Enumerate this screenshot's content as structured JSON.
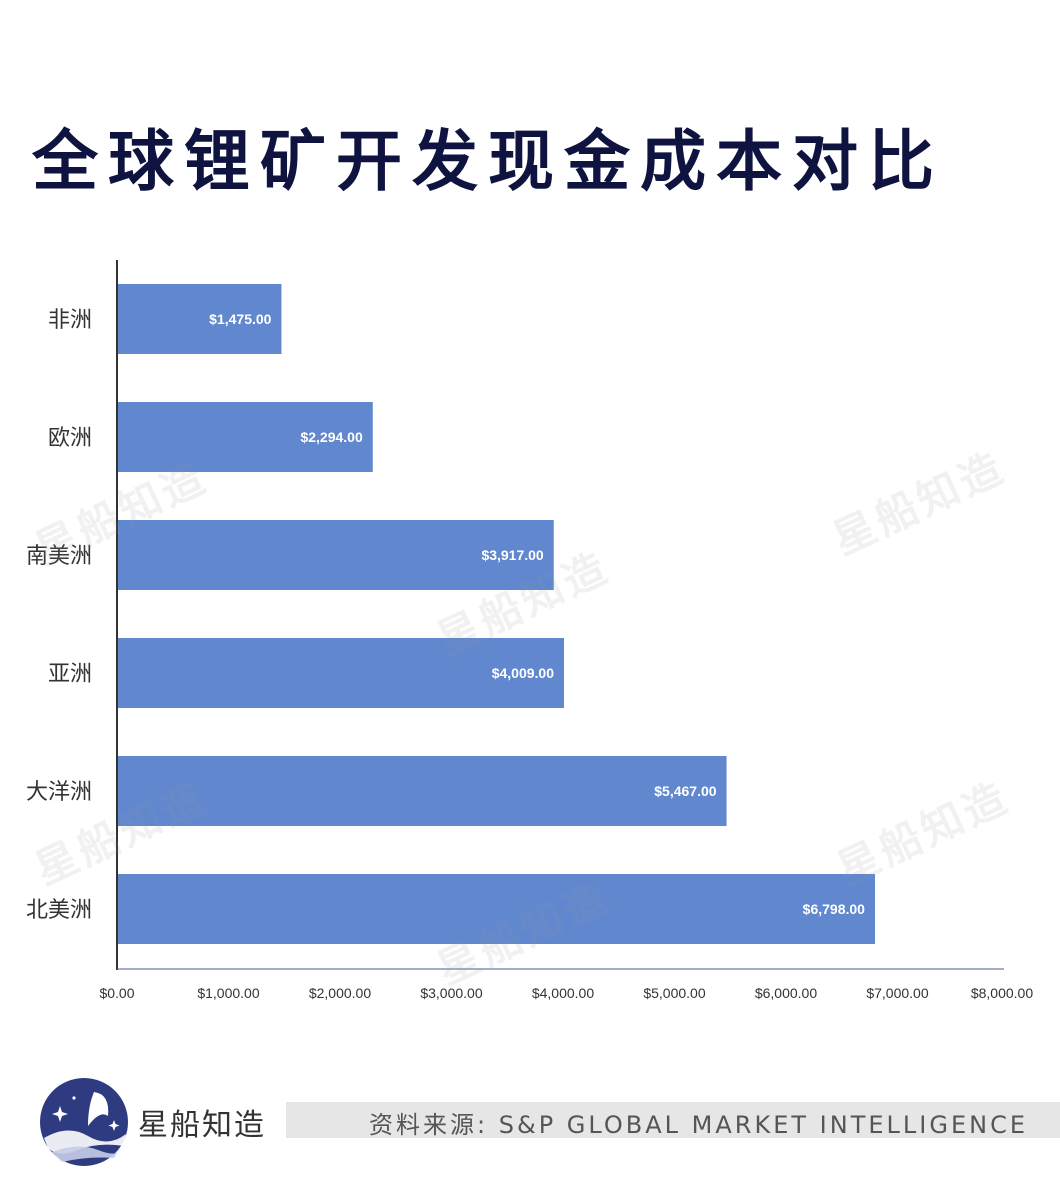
{
  "title": "全球锂矿开发现金成本对比",
  "chart_data": {
    "type": "bar",
    "orientation": "horizontal",
    "categories": [
      "非洲",
      "欧洲",
      "南美洲",
      "亚洲",
      "大洋洲",
      "北美洲"
    ],
    "values": [
      1475,
      2294,
      3917,
      4009,
      5467,
      6798
    ],
    "value_labels": [
      "$1,475.00",
      "$2,294.00",
      "$3,917.00",
      "$4,009.00",
      "$5,467.00",
      "$6,798.00"
    ],
    "xlim": [
      0,
      8000
    ],
    "x_ticks": [
      0,
      1000,
      2000,
      3000,
      4000,
      5000,
      6000,
      7000,
      8000
    ],
    "x_tick_labels": [
      "$0.00",
      "$1,000.00",
      "$2,000.00",
      "$3,000.00",
      "$4,000.00",
      "$5,000.00",
      "$6,000.00",
      "$7,000.00",
      "$8,000.00"
    ],
    "bar_color": "#6188cf",
    "grid": false
  },
  "watermark": "星船知造",
  "footer": {
    "brand": "星船知造",
    "source": "资料来源: S&P GLOBAL MARKET INTELLIGENCE",
    "logo_color": "#2f3b80"
  }
}
